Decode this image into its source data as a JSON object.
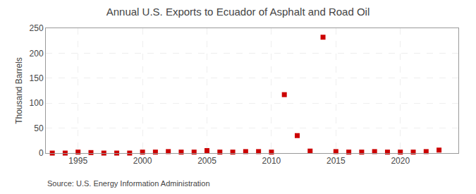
{
  "chart_data": {
    "type": "scatter",
    "title": "Annual U.S. Exports to Ecuador of Asphalt and Road Oil",
    "ylabel": "Thousand Barrels",
    "annotations": [
      "Source: U.S. Energy Information Administration"
    ],
    "x": [
      1993,
      1994,
      1995,
      1996,
      1997,
      1998,
      1999,
      2000,
      2001,
      2002,
      2003,
      2004,
      2005,
      2006,
      2007,
      2008,
      2009,
      2010,
      2011,
      2012,
      2013,
      2014,
      2015,
      2016,
      2017,
      2018,
      2019,
      2020,
      2021,
      2022,
      2023
    ],
    "values": [
      0,
      0,
      2,
      1,
      0,
      0,
      0,
      2,
      2,
      3,
      2,
      2,
      5,
      2,
      2,
      3,
      3,
      2,
      117,
      35,
      4,
      232,
      3,
      2,
      2,
      3,
      2,
      2,
      2,
      3,
      6
    ],
    "color": "#cc0000",
    "marker": "square",
    "xlim": [
      1992.5,
      2024.5
    ],
    "xticks": [
      1995,
      2000,
      2005,
      2010,
      2015,
      2020
    ],
    "ylim": [
      0,
      250
    ],
    "yticks": [
      0,
      50,
      100,
      150,
      200,
      250
    ],
    "grid": true
  }
}
